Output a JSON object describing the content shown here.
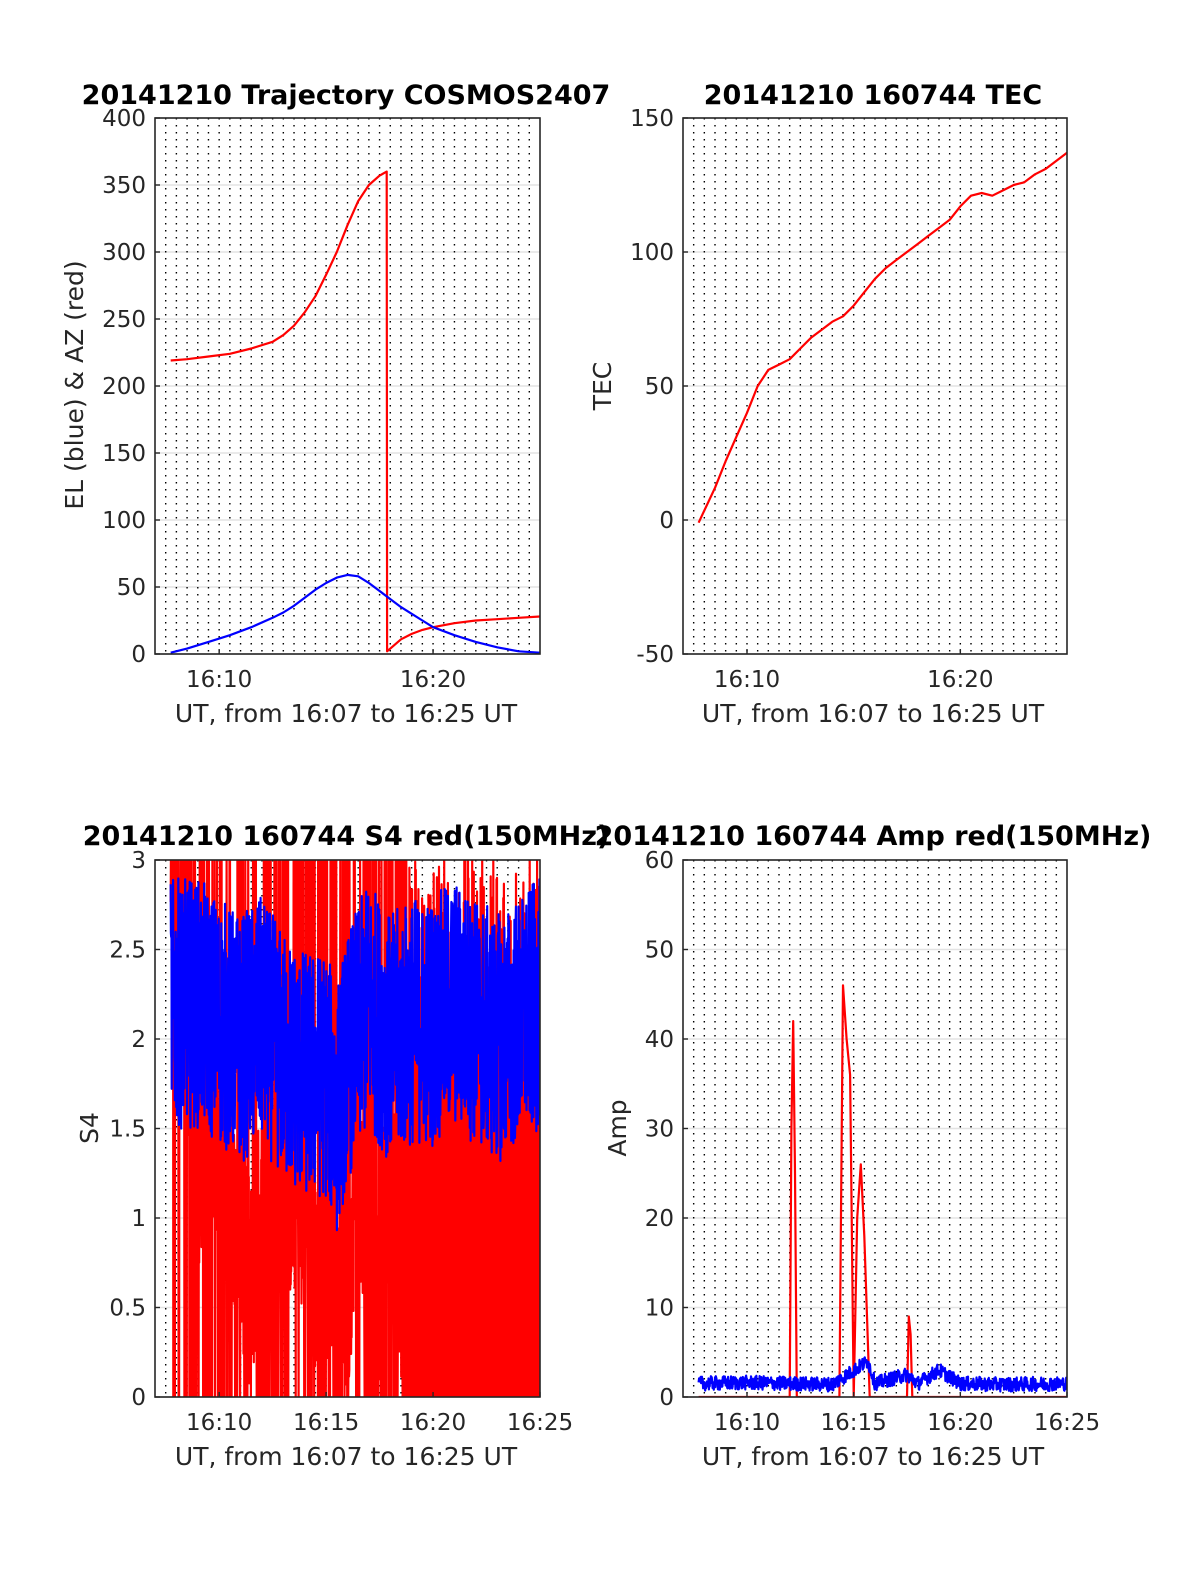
{
  "chart_data": [
    {
      "type": "line",
      "title": "20141210 Trajectory COSMOS2407",
      "xlabel": "UT, from 16:07 to 16:25 UT",
      "ylabel": "EL (blue) & AZ (red)",
      "xlim": [
        "16:07",
        "16:25"
      ],
      "ylim": [
        0,
        400
      ],
      "xticks": [
        {
          "value": "16:10",
          "label": "16:10"
        },
        {
          "value": "16:20",
          "label": "16:20"
        }
      ],
      "yticks": [
        0,
        50,
        100,
        150,
        200,
        250,
        300,
        350,
        400
      ],
      "grid": {
        "x": "dotted black, every 30 s",
        "y": "solid light grey"
      },
      "series": [
        {
          "color": "#ff0000",
          "x": [
            "16:07:44",
            "16:08:30",
            "16:09:30",
            "16:10:30",
            "16:11:30",
            "16:12:30",
            "16:13:00",
            "16:13:30",
            "16:14:00",
            "16:14:30",
            "16:15:00",
            "16:15:30",
            "16:16:00",
            "16:16:30",
            "16:17:00",
            "16:17:30",
            "16:17:50",
            "16:17:51",
            "16:18:30",
            "16:19:00",
            "16:19:30",
            "16:20:00",
            "16:21:00",
            "16:22:00",
            "16:23:00",
            "16:24:00",
            "16:25:00"
          ],
          "values": [
            219,
            220,
            222,
            224,
            228,
            233,
            238,
            245,
            255,
            267,
            283,
            300,
            320,
            338,
            350,
            357,
            360,
            2,
            11,
            15,
            18,
            20,
            23,
            25,
            26,
            27,
            28
          ]
        },
        {
          "color": "#0000ff",
          "x": [
            "16:07:44",
            "16:08:30",
            "16:09:30",
            "16:10:30",
            "16:11:30",
            "16:12:30",
            "16:13:00",
            "16:13:30",
            "16:14:00",
            "16:14:30",
            "16:15:00",
            "16:15:30",
            "16:16:00",
            "16:16:30",
            "16:17:00",
            "16:17:30",
            "16:18:00",
            "16:18:30",
            "16:19:00",
            "16:19:30",
            "16:20:00",
            "16:21:00",
            "16:22:00",
            "16:23:00",
            "16:24:00",
            "16:25:00"
          ],
          "values": [
            1,
            4,
            9,
            14,
            20,
            27,
            31,
            36,
            42,
            48,
            53,
            57,
            59,
            58,
            53,
            47,
            41,
            35,
            30,
            25,
            20,
            14,
            9,
            5,
            2,
            1
          ]
        }
      ]
    },
    {
      "type": "line",
      "title": "20141210 160744 TEC",
      "xlabel": "UT, from 16:07 to 16:25 UT",
      "ylabel": "TEC",
      "xlim": [
        "16:07",
        "16:25"
      ],
      "ylim": [
        -50,
        150
      ],
      "xticks": [
        {
          "value": "16:10",
          "label": "16:10"
        },
        {
          "value": "16:20",
          "label": "16:20"
        }
      ],
      "yticks": [
        -50,
        0,
        50,
        100,
        150
      ],
      "grid": {
        "x": "dotted black, every 30 s",
        "y": "solid light grey"
      },
      "series": [
        {
          "color": "#ff0000",
          "x": [
            "16:07:44",
            "16:08:30",
            "16:09:00",
            "16:09:30",
            "16:10:00",
            "16:10:30",
            "16:11:00",
            "16:11:30",
            "16:12:00",
            "16:12:30",
            "16:13:00",
            "16:13:30",
            "16:14:00",
            "16:14:30",
            "16:15:00",
            "16:15:30",
            "16:16:00",
            "16:16:30",
            "16:17:00",
            "16:17:30",
            "16:18:00",
            "16:18:30",
            "16:19:00",
            "16:19:30",
            "16:20:00",
            "16:20:30",
            "16:21:00",
            "16:21:30",
            "16:22:00",
            "16:22:30",
            "16:23:00",
            "16:23:30",
            "16:24:00",
            "16:24:30",
            "16:25:00"
          ],
          "values": [
            -1,
            12,
            22,
            31,
            40,
            50,
            56,
            58,
            60,
            64,
            68,
            71,
            74,
            76,
            80,
            85,
            90,
            94,
            97,
            100,
            103,
            106,
            109,
            112,
            117,
            121,
            122,
            121,
            123,
            125,
            126,
            129,
            131,
            134,
            137
          ]
        }
      ]
    },
    {
      "type": "line",
      "title": "20141210 160744 S4 red(150MHz)",
      "xlabel": "UT, from 16:07 to 16:25 UT",
      "ylabel": "S4",
      "xlim": [
        "16:07",
        "16:25"
      ],
      "ylim": [
        0,
        3
      ],
      "xticks": [
        {
          "value": "16:10",
          "label": "16:10"
        },
        {
          "value": "16:15",
          "label": "16:15"
        },
        {
          "value": "16:20",
          "label": "16:20"
        },
        {
          "value": "16:25",
          "label": "16:25"
        }
      ],
      "yticks": [
        0,
        0.5,
        1,
        1.5,
        2,
        2.5,
        3
      ],
      "grid": {
        "x": "dotted black, every 30 s",
        "y": "solid light grey"
      },
      "series": [
        {
          "color": "#ff0000",
          "x": [
            "16:07:44",
            "16:09:00",
            "16:10:00",
            "16:11:00",
            "16:11:30",
            "16:12:00",
            "16:13:00",
            "16:14:00",
            "16:14:30",
            "16:15:00",
            "16:15:30",
            "16:16:00",
            "16:16:30",
            "16:17:00",
            "16:18:00",
            "16:19:00",
            "16:20:00",
            "16:21:00",
            "16:22:00",
            "16:23:00",
            "16:24:00",
            "16:25:00"
          ],
          "values": [
            3.0,
            1.3,
            1.5,
            0.9,
            0.6,
            1.1,
            1.2,
            1.0,
            0.7,
            0.8,
            0.9,
            0.5,
            1.5,
            0.0,
            1.4,
            0.0,
            0.0,
            0.0,
            0.0,
            0.0,
            0.0,
            0.0
          ],
          "fill_to_zero_from": "16:18:50",
          "noise": "heavy"
        },
        {
          "color": "#0000ff",
          "x": [
            "16:07:44",
            "16:09:00",
            "16:10:00",
            "16:11:00",
            "16:12:00",
            "16:13:00",
            "16:14:00",
            "16:15:00",
            "16:15:30",
            "16:16:00",
            "16:17:00",
            "16:18:00",
            "16:19:00",
            "16:20:00",
            "16:21:00",
            "16:22:00",
            "16:23:00",
            "16:24:00",
            "16:25:00"
          ],
          "values": [
            2.2,
            2.2,
            2.1,
            2.0,
            2.1,
            1.9,
            1.8,
            1.8,
            1.6,
            1.9,
            2.2,
            2.0,
            2.1,
            2.1,
            2.2,
            2.1,
            2.0,
            2.1,
            2.2
          ],
          "noise": "heavy"
        }
      ]
    },
    {
      "type": "line",
      "title": "20141210 160744 Amp red(150MHz)",
      "xlabel": "UT, from 16:07 to 16:25 UT",
      "ylabel": "Amp",
      "xlim": [
        "16:07",
        "16:25"
      ],
      "ylim": [
        0,
        60
      ],
      "xticks": [
        {
          "value": "16:10",
          "label": "16:10"
        },
        {
          "value": "16:15",
          "label": "16:15"
        },
        {
          "value": "16:20",
          "label": "16:20"
        },
        {
          "value": "16:25",
          "label": "16:25"
        }
      ],
      "yticks": [
        0,
        10,
        20,
        30,
        40,
        50,
        60
      ],
      "grid": {
        "x": "dotted black, every 30 s",
        "y": "solid light grey"
      },
      "series": [
        {
          "color": "#ff0000",
          "x": [
            "16:07:44",
            "16:12:00",
            "16:12:05",
            "16:12:10",
            "16:12:15",
            "16:12:20",
            "16:14:20",
            "16:14:30",
            "16:14:40",
            "16:14:50",
            "16:15:00",
            "16:15:10",
            "16:15:20",
            "16:15:30",
            "16:15:45",
            "16:16:00",
            "16:17:30",
            "16:17:35",
            "16:17:40",
            "16:17:45",
            "16:25:00"
          ],
          "values": [
            0,
            0,
            30,
            42,
            25,
            0,
            0,
            46,
            40,
            36,
            0,
            20,
            26,
            18,
            0,
            0,
            0,
            9,
            7,
            0,
            0
          ]
        },
        {
          "color": "#0000ff",
          "x": [
            "16:07:44",
            "16:10:00",
            "16:12:00",
            "16:14:00",
            "16:15:40",
            "16:16:00",
            "16:17:30",
            "16:18:00",
            "16:19:00",
            "16:20:00",
            "16:22:00",
            "16:25:00"
          ],
          "values": [
            1.5,
            1.6,
            1.5,
            1.4,
            4.0,
            1.5,
            2.5,
            1.5,
            3.0,
            1.5,
            1.4,
            1.5
          ],
          "noise": "light"
        }
      ]
    }
  ]
}
